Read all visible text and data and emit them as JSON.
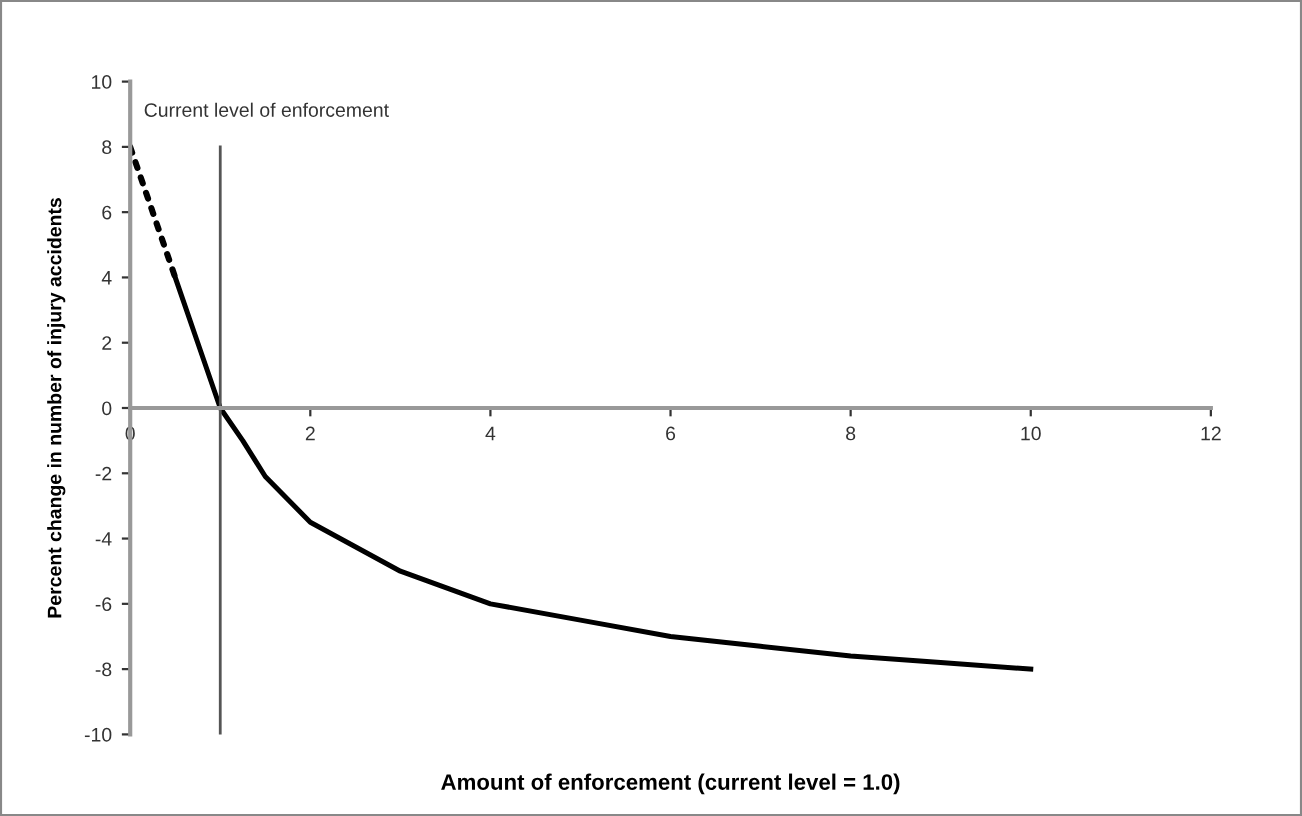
{
  "chart_data": {
    "type": "line",
    "xlabel": "Amount of enforcement (current level = 1.0)",
    "ylabel": "Percent change in number of injury accidents",
    "series": [
      {
        "color": "#000000",
        "line_style": "dotted",
        "x": [
          0,
          0.5
        ],
        "values": [
          8,
          4
        ]
      },
      {
        "color": "#000000",
        "line_style": "solid",
        "x": [
          0.5,
          0.75,
          1,
          1.25,
          1.5,
          2,
          3,
          4,
          5,
          6,
          7,
          8,
          9,
          10
        ],
        "values": [
          4,
          2,
          0,
          -1,
          -2.1,
          -3.5,
          -5,
          -6,
          -6.5,
          -7,
          -7.3,
          -7.6,
          -7.8,
          -8
        ]
      }
    ],
    "xlim": [
      0,
      12
    ],
    "xticks": [
      0,
      2,
      4,
      6,
      8,
      10,
      12
    ],
    "ylim": [
      -10,
      10
    ],
    "yticks": [
      -10,
      -8,
      -6,
      -4,
      -2,
      0,
      2,
      4,
      6,
      8,
      10
    ],
    "ref_lines": [
      {
        "axis": "x",
        "value": 1,
        "label": "Current level of enforcement",
        "color": "#555555"
      }
    ],
    "grid": false,
    "legend": false,
    "marker": "none"
  }
}
